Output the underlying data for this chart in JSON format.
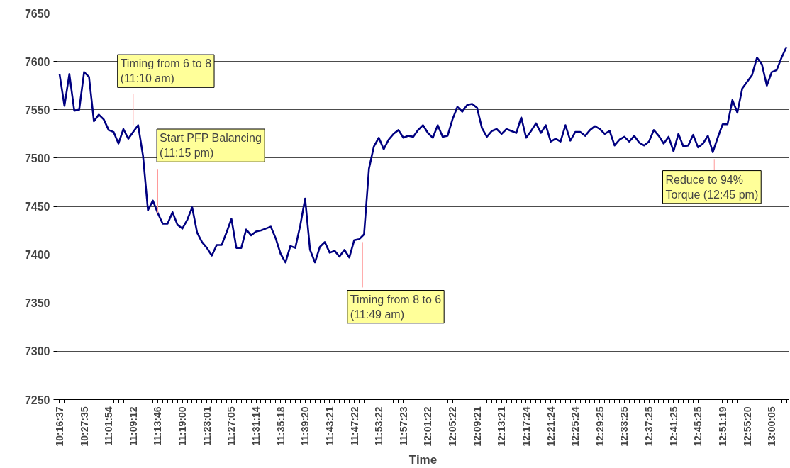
{
  "chart_data": {
    "type": "line",
    "xlabel": "Time",
    "categories": [
      "10:16:37",
      null,
      null,
      null,
      null,
      "10:27:35",
      null,
      null,
      null,
      null,
      "11:01:54",
      null,
      null,
      null,
      null,
      "11:09:12",
      null,
      null,
      null,
      null,
      "11:13:46",
      null,
      null,
      null,
      null,
      "11:19:00",
      null,
      null,
      null,
      null,
      "11:23:01",
      null,
      null,
      null,
      null,
      "11:27:05",
      null,
      null,
      null,
      null,
      "11:31:14",
      null,
      null,
      null,
      null,
      "11:35:18",
      null,
      null,
      null,
      null,
      "11:39:20",
      null,
      null,
      null,
      null,
      "11:43:21",
      null,
      null,
      null,
      null,
      "11:47:22",
      null,
      null,
      null,
      null,
      "11:53:22",
      null,
      null,
      null,
      null,
      "11:57:23",
      null,
      null,
      null,
      null,
      "12:01:22",
      null,
      null,
      null,
      null,
      "12:05:22",
      null,
      null,
      null,
      null,
      "12:09:21",
      null,
      null,
      null,
      null,
      "12:13:21",
      null,
      null,
      null,
      null,
      "12:17:24",
      null,
      null,
      null,
      null,
      "12:21:24",
      null,
      null,
      null,
      null,
      "12:25:24",
      null,
      null,
      null,
      null,
      "12:29:25",
      null,
      null,
      null,
      null,
      "12:33:25",
      null,
      null,
      null,
      null,
      "12:37:25",
      null,
      null,
      null,
      null,
      "12:41:25",
      null,
      null,
      null,
      null,
      "12:45:25",
      null,
      null,
      null,
      null,
      "12:51:19",
      null,
      null,
      null,
      null,
      "12:55:20",
      null,
      null,
      null,
      null,
      "13:00:05",
      null,
      null,
      null
    ],
    "series": [
      {
        "color": "#000080",
        "values": [
          7587,
          7554,
          7587,
          7549,
          7550,
          7589,
          7584,
          7538,
          7545,
          7540,
          7529,
          7527,
          7515,
          7530,
          7520,
          7527,
          7534,
          7502,
          7446,
          7456,
          7443,
          7432,
          7432,
          7444,
          7431,
          7427,
          7436,
          7449,
          7423,
          7413,
          7407,
          7399,
          7410,
          7410,
          7423,
          7437,
          7407,
          7407,
          7426,
          7420,
          7424,
          7425,
          7427,
          7429,
          7417,
          7401,
          7392,
          7409,
          7407,
          7430,
          7458,
          7405,
          7392,
          7408,
          7413,
          7402,
          7404,
          7398,
          7405,
          7397,
          7415,
          7416,
          7421,
          7489,
          7512,
          7521,
          7509,
          7519,
          7525,
          7529,
          7521,
          7523,
          7522,
          7529,
          7534,
          7526,
          7521,
          7534,
          7522,
          7523,
          7540,
          7553,
          7548,
          7555,
          7556,
          7552,
          7531,
          7522,
          7528,
          7530,
          7525,
          7530,
          7528,
          7526,
          7542,
          7521,
          7528,
          7536,
          7526,
          7534,
          7517,
          7520,
          7517,
          7534,
          7518,
          7527,
          7527,
          7523,
          7529,
          7533,
          7530,
          7525,
          7528,
          7513,
          7519,
          7522,
          7517,
          7523,
          7516,
          7513,
          7517,
          7529,
          7523,
          7515,
          7522,
          7507,
          7525,
          7512,
          7513,
          7524,
          7511,
          7515,
          7523,
          7506,
          7521,
          7535,
          7535,
          7560,
          7547,
          7572,
          7579,
          7586,
          7604,
          7597,
          7575,
          7589,
          7591,
          7604,
          7615
        ]
      }
    ],
    "ylim": [
      7250,
      7650
    ],
    "yticks": [
      7250,
      7300,
      7350,
      7400,
      7450,
      7500,
      7550,
      7600,
      7650
    ],
    "grid": "y",
    "annotations": [
      {
        "text": "Timing from 6 to 8\n(11:10 am)",
        "x": "11:09:12",
        "y": 7534
      },
      {
        "text": "Start PFP Balancing\n(11:15 pm)",
        "x": "11:13:46",
        "y": 7443
      },
      "Timing from 8 to 6\n(11:49 am)",
      "Reduce to 94%\nTorque (12:45 pm)"
    ]
  }
}
